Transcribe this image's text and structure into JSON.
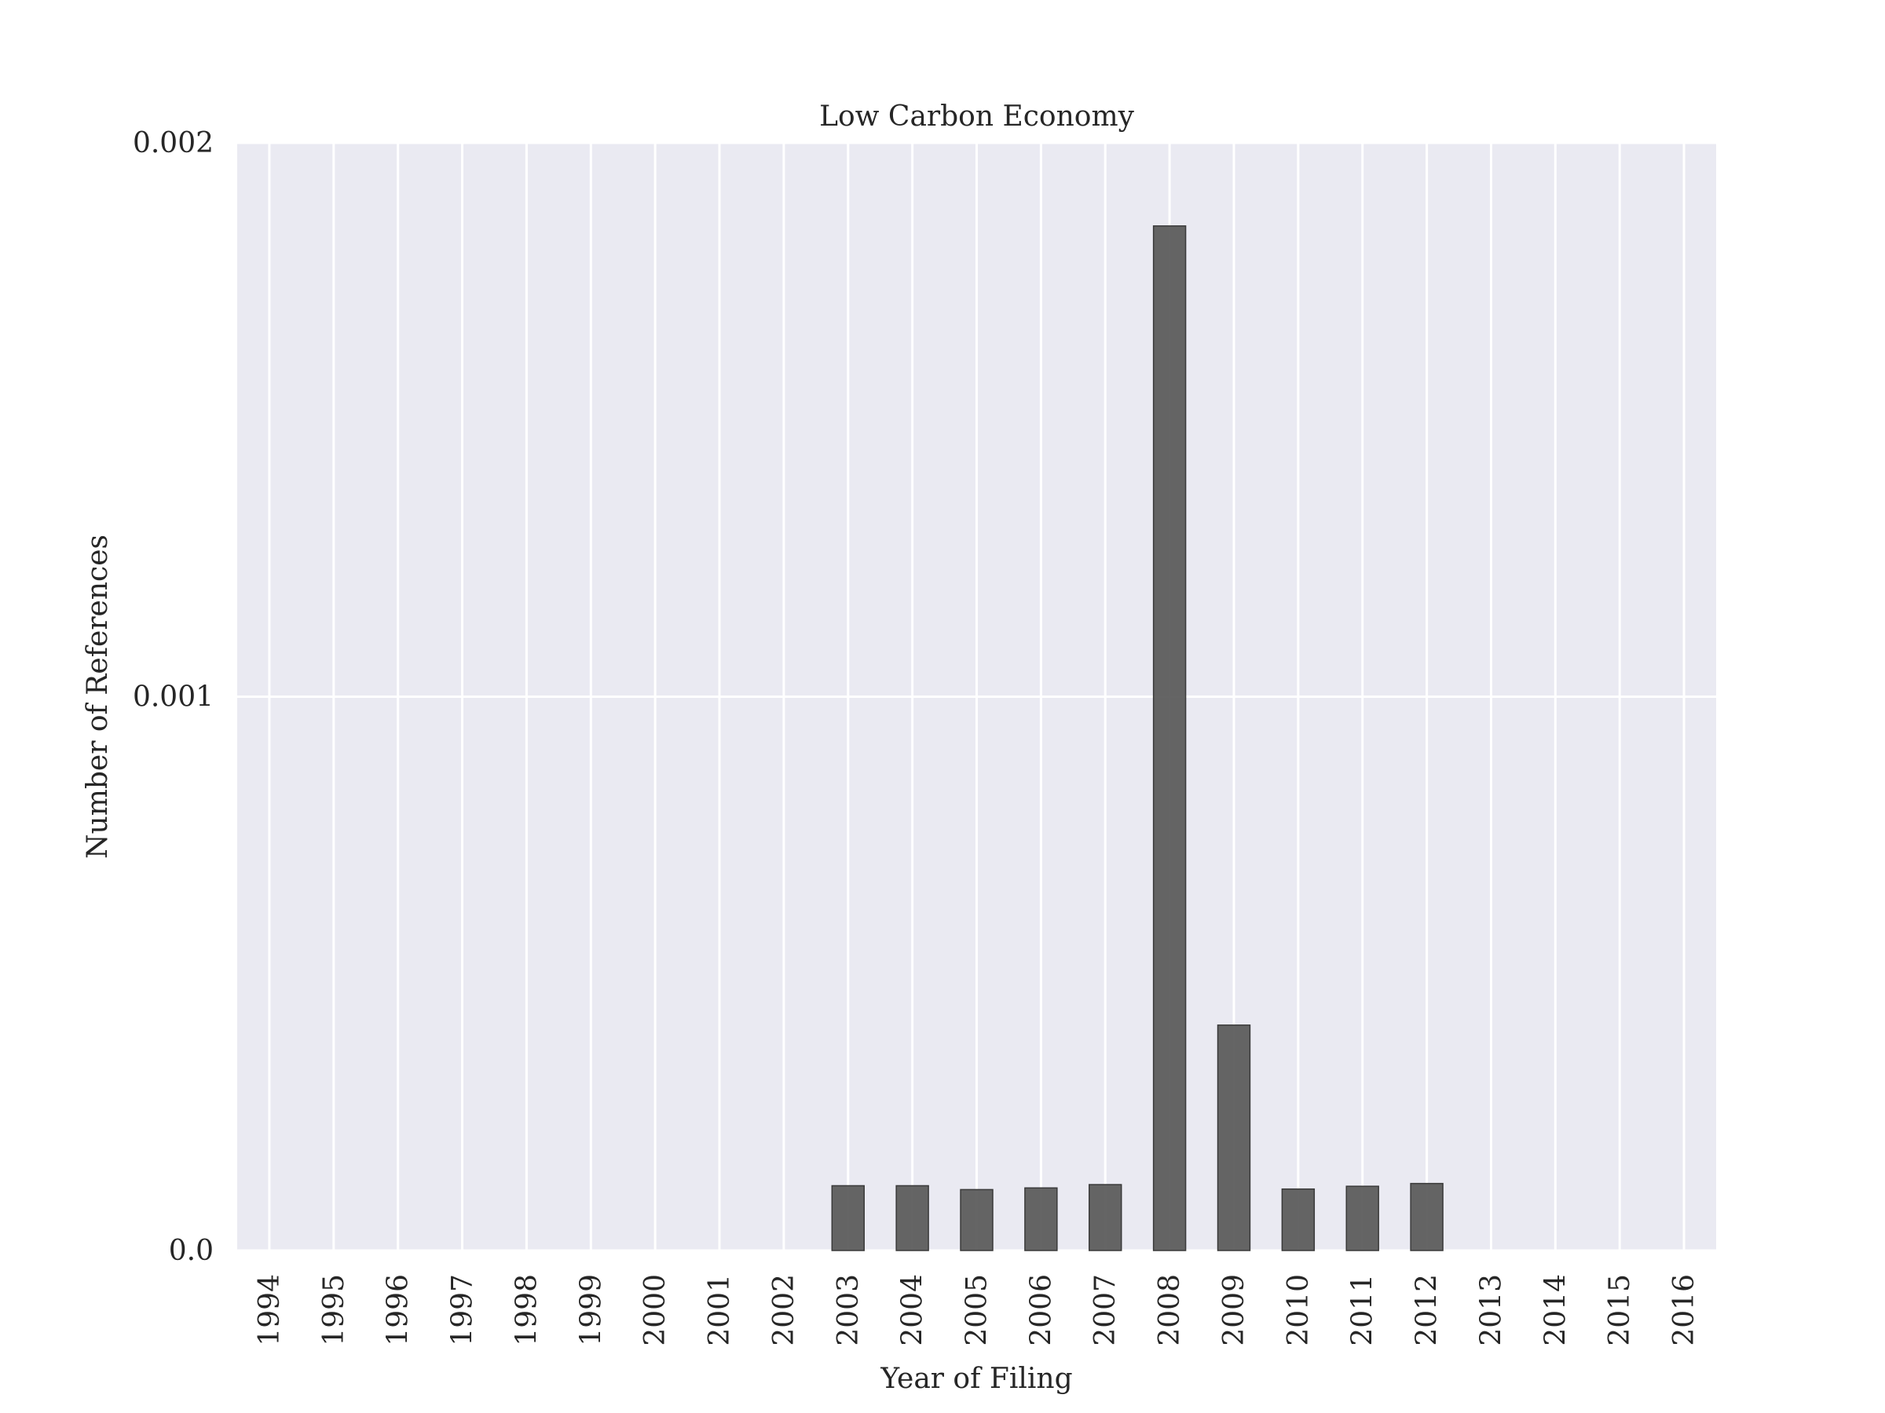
{
  "chart_data": {
    "type": "bar",
    "title": "Low Carbon Economy",
    "xlabel": "Year of Filing",
    "ylabel": "Number of References",
    "categories": [
      "1994",
      "1995",
      "1996",
      "1997",
      "1998",
      "1999",
      "2000",
      "2001",
      "2002",
      "2003",
      "2004",
      "2005",
      "2006",
      "2007",
      "2008",
      "2009",
      "2010",
      "2011",
      "2012",
      "2013",
      "2014",
      "2015",
      "2016"
    ],
    "values": [
      0,
      0,
      0,
      0,
      0,
      0,
      0,
      0,
      0,
      0.000117,
      0.000117,
      0.00011,
      0.000113,
      0.000119,
      0.00185,
      0.000407,
      0.000111,
      0.000116,
      0.000121,
      0,
      0,
      0,
      0
    ],
    "ylim": [
      0,
      0.002
    ],
    "yticks": [
      0.0,
      0.001,
      0.002
    ],
    "ytick_labels": [
      "0.0",
      "0.001",
      "0.002"
    ],
    "grid": true,
    "colors": {
      "plot_background": "#eaeaf2",
      "grid": "#ffffff",
      "bar": "#595959",
      "bar_edge": "#3a3a3a"
    }
  }
}
